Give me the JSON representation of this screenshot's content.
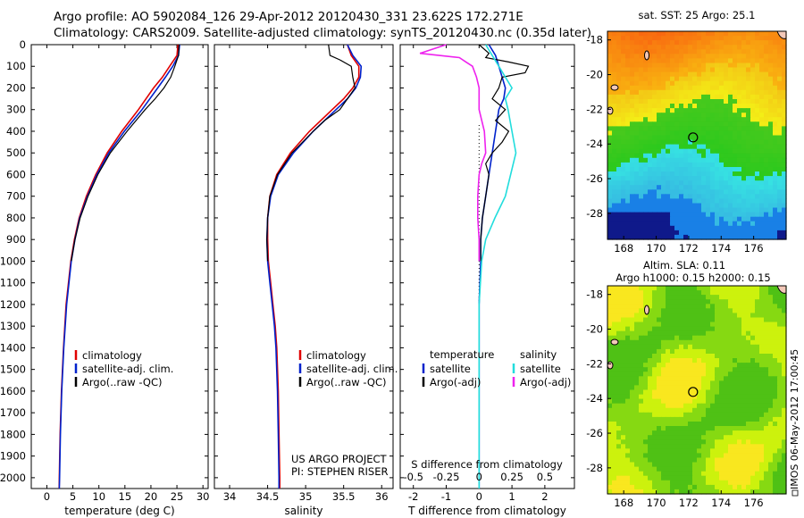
{
  "header": {
    "line1": "Argo profile: AO 5902084_126 29-Apr-2012 20120430_331 23.622S 172.271E",
    "line2": "Climatology: CARS2009. Satellite-adjusted climatology: synTS_20120430.nc (0.35d later)"
  },
  "colors": {
    "climatology": "#e00000",
    "satellite": "#0022cc",
    "argo": "#000000",
    "sal_satellite": "#22dddd",
    "sal_argo": "#ee22ee"
  },
  "chart_data": [
    {
      "type": "line",
      "xlabel": "temperature (deg C)",
      "ylabel": "",
      "xlim": [
        -3,
        31
      ],
      "ylim": [
        2050,
        0
      ],
      "xticks": [
        0,
        5,
        10,
        15,
        20,
        25,
        30
      ],
      "yticks": [
        0,
        100,
        200,
        300,
        400,
        500,
        600,
        700,
        800,
        900,
        1000,
        1100,
        1200,
        1300,
        1400,
        1500,
        1600,
        1700,
        1800,
        1900,
        2000
      ],
      "legend": [
        "climatology",
        "satellite-adj. clim.",
        "Argo(..raw -QC)"
      ],
      "series": [
        {
          "name": "climatology",
          "color": "#e00000",
          "y": [
            0,
            50,
            100,
            150,
            200,
            300,
            400,
            500,
            600,
            700,
            800,
            900,
            1000,
            1200,
            1400,
            1600,
            1800,
            2000,
            2050
          ],
          "x": [
            25.2,
            25.0,
            23.6,
            22.2,
            20.5,
            17.6,
            14.4,
            11.6,
            9.4,
            7.6,
            6.2,
            5.3,
            4.6,
            3.7,
            3.2,
            2.8,
            2.55,
            2.4,
            2.35
          ]
        },
        {
          "name": "satellite-adj. clim.",
          "color": "#0022cc",
          "y": [
            0,
            50,
            100,
            150,
            200,
            300,
            400,
            500,
            600,
            700,
            800,
            900,
            1000,
            1200,
            1400,
            1600,
            1800,
            2000,
            2050
          ],
          "x": [
            25.5,
            25.3,
            24.2,
            22.8,
            21.3,
            18.3,
            14.9,
            11.9,
            9.6,
            7.8,
            6.3,
            5.4,
            4.7,
            3.8,
            3.25,
            2.85,
            2.6,
            2.45,
            2.4
          ]
        },
        {
          "name": "Argo(..raw -QC)",
          "color": "#000000",
          "y": [
            0,
            50,
            70,
            100,
            150,
            200,
            250,
            300,
            400,
            500,
            600,
            700,
            800,
            900,
            1000
          ],
          "x": [
            25.4,
            25.3,
            25.0,
            24.6,
            23.8,
            22.5,
            20.8,
            18.9,
            15.4,
            12.2,
            9.8,
            7.9,
            6.4,
            5.4,
            4.7
          ]
        }
      ]
    },
    {
      "type": "line",
      "xlabel": "salinity",
      "ylabel": "",
      "xlim": [
        33.8,
        36.15
      ],
      "ylim": [
        2050,
        0
      ],
      "xticks": [
        34,
        34.5,
        35,
        35.5,
        36
      ],
      "legend": [
        "climatology",
        "satellite-adj. clim.",
        "Argo(..raw -QC)"
      ],
      "annotation": [
        "US ARGO PROJECT",
        "PI: STEPHEN RISER"
      ],
      "series": [
        {
          "name": "climatology",
          "color": "#e00000",
          "y": [
            0,
            50,
            100,
            150,
            200,
            250,
            300,
            400,
            500,
            600,
            700,
            800,
            900,
            1000,
            1100,
            1200,
            1300,
            1400,
            1600,
            1800,
            2000,
            2050
          ],
          "x": [
            35.55,
            35.6,
            35.7,
            35.7,
            35.62,
            35.5,
            35.35,
            35.05,
            34.8,
            34.62,
            34.53,
            34.5,
            34.5,
            34.51,
            34.54,
            34.57,
            34.6,
            34.62,
            34.64,
            34.65,
            34.66,
            34.66
          ]
        },
        {
          "name": "satellite-adj. clim.",
          "color": "#0022cc",
          "y": [
            0,
            50,
            100,
            150,
            200,
            250,
            300,
            400,
            500,
            600,
            700,
            800,
            900,
            1000,
            1100,
            1200,
            1300,
            1400,
            1600,
            1800,
            2000,
            2050
          ],
          "x": [
            35.55,
            35.62,
            35.73,
            35.72,
            35.66,
            35.55,
            35.4,
            35.1,
            34.84,
            34.64,
            34.54,
            34.5,
            34.49,
            34.5,
            34.53,
            34.56,
            34.59,
            34.61,
            34.63,
            34.64,
            34.65,
            34.65
          ]
        },
        {
          "name": "Argo(..raw -QC)",
          "color": "#000000",
          "y": [
            0,
            50,
            70,
            100,
            150,
            200,
            250,
            300,
            350,
            400,
            500,
            600,
            700,
            800,
            900,
            1000
          ],
          "x": [
            35.3,
            35.32,
            35.45,
            35.6,
            35.62,
            35.65,
            35.55,
            35.45,
            35.25,
            35.1,
            34.82,
            34.63,
            34.53,
            34.5,
            34.49,
            34.5
          ]
        }
      ]
    },
    {
      "type": "line",
      "xlabel": "T difference from climatology",
      "xlabel2": "S difference from climatology",
      "xlim": [
        -2.4,
        2.9
      ],
      "ylim": [
        2050,
        0
      ],
      "xticks": [
        -2,
        -1,
        0,
        1,
        2
      ],
      "xticks2": [
        "-0.5",
        "-0.25",
        "0",
        "0.25",
        "0.5"
      ],
      "legend_groups": [
        {
          "title": "temperature",
          "items": [
            "satellite",
            "Argo(-adj)"
          ]
        },
        {
          "title": "salinity",
          "items": [
            "satellite",
            "Argo(-adj)"
          ]
        }
      ],
      "series": [
        {
          "name": "temperature satellite",
          "color": "#0022cc",
          "y": [
            0,
            50,
            100,
            150,
            200,
            250,
            300,
            400,
            500,
            600,
            700,
            800,
            900,
            1000,
            1200,
            1600,
            2050
          ],
          "x": [
            0.3,
            0.5,
            0.6,
            0.7,
            0.8,
            0.75,
            0.6,
            0.5,
            0.4,
            0.3,
            0.2,
            0.1,
            0.05,
            0.05,
            0,
            0,
            0
          ]
        },
        {
          "name": "temperature Argo(-adj)",
          "color": "#000000",
          "y": [
            0,
            40,
            60,
            80,
            100,
            130,
            150,
            200,
            250,
            300,
            350,
            400,
            450,
            500,
            550,
            600,
            700,
            800,
            900,
            1000
          ],
          "x": [
            0,
            0.3,
            0.2,
            0.9,
            1.5,
            1.4,
            0.7,
            0.6,
            0.4,
            0.8,
            0.5,
            0.9,
            0.7,
            0.4,
            0.2,
            0.3,
            0.2,
            0.1,
            0.05,
            0.05
          ]
        },
        {
          "name": "salinity satellite",
          "color": "#22dddd",
          "y": [
            0,
            50,
            100,
            150,
            200,
            250,
            300,
            400,
            500,
            600,
            700,
            800,
            900,
            1000,
            1200,
            1600,
            2050
          ],
          "x": [
            0.05,
            0.1,
            0.15,
            0.2,
            0.25,
            0.2,
            0.22,
            0.25,
            0.28,
            0.24,
            0.2,
            0.12,
            0.05,
            0.02,
            0,
            0,
            0
          ]
        },
        {
          "name": "salinity Argo(-adj)",
          "color": "#ee22ee",
          "y": [
            0,
            40,
            60,
            80,
            100,
            150,
            200,
            300,
            400,
            500,
            550,
            600,
            700,
            800,
            900,
            1000
          ],
          "x": [
            -0.25,
            -0.45,
            -0.15,
            -0.1,
            -0.05,
            -0.02,
            0,
            0,
            0.04,
            0.05,
            0.02,
            0.0,
            -0.01,
            -0.01,
            0,
            0
          ]
        }
      ]
    }
  ],
  "maps": {
    "sst_title": "sat. SST: 25  Argo: 25.1",
    "sla_title1": "Altim. SLA: 0.11",
    "sla_title2": "Argo h1000: 0.15  h2000: 0.15",
    "xticks": [
      "168",
      "170",
      "172",
      "174",
      "176"
    ],
    "yticks": [
      "-18",
      "-20",
      "-22",
      "-24",
      "-26",
      "-28"
    ]
  },
  "credit": "IMOS 06-May-2012 17:00:45"
}
